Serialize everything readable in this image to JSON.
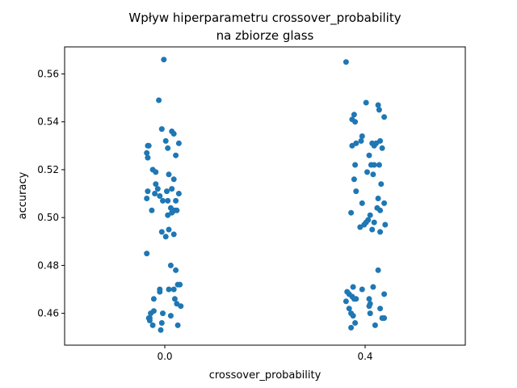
{
  "chart_data": {
    "type": "scatter",
    "title": "Wpływ hiperparametru crossover_probability\nna zbiorze glass",
    "title_lines": [
      "Wpływ hiperparametru crossover_probability",
      "na zbiorze glass"
    ],
    "xlabel": "crossover_probability",
    "ylabel": "accuracy",
    "categories": [
      "0.0",
      "0.4"
    ],
    "ylim": [
      0.4467,
      0.5713
    ],
    "yticks": [
      0.46,
      0.48,
      0.5,
      0.52,
      0.54,
      0.56
    ],
    "ytick_labels": [
      "0.46",
      "0.48",
      "0.50",
      "0.52",
      "0.54",
      "0.56"
    ],
    "color": "#1f77b4",
    "grid": false,
    "series": [
      {
        "category": "0.0",
        "points": [
          {
            "j": -0.02,
            "y": 0.566
          },
          {
            "j": -0.12,
            "y": 0.549
          },
          {
            "j": -0.06,
            "y": 0.537
          },
          {
            "j": 0.02,
            "y": 0.532
          },
          {
            "j": 0.14,
            "y": 0.536
          },
          {
            "j": 0.18,
            "y": 0.535
          },
          {
            "j": -0.32,
            "y": 0.53
          },
          {
            "j": -0.34,
            "y": 0.53
          },
          {
            "j": 0.06,
            "y": 0.529
          },
          {
            "j": 0.28,
            "y": 0.531
          },
          {
            "j": -0.36,
            "y": 0.527
          },
          {
            "j": -0.34,
            "y": 0.525
          },
          {
            "j": 0.22,
            "y": 0.526
          },
          {
            "j": -0.24,
            "y": 0.52
          },
          {
            "j": -0.18,
            "y": 0.519
          },
          {
            "j": 0.08,
            "y": 0.518
          },
          {
            "j": 0.18,
            "y": 0.516
          },
          {
            "j": -0.18,
            "y": 0.514
          },
          {
            "j": -0.14,
            "y": 0.512
          },
          {
            "j": -0.34,
            "y": 0.511
          },
          {
            "j": -0.2,
            "y": 0.51
          },
          {
            "j": 0.04,
            "y": 0.511
          },
          {
            "j": 0.14,
            "y": 0.512
          },
          {
            "j": 0.28,
            "y": 0.51
          },
          {
            "j": -0.36,
            "y": 0.508
          },
          {
            "j": -0.1,
            "y": 0.509
          },
          {
            "j": -0.04,
            "y": 0.507
          },
          {
            "j": 0.06,
            "y": 0.507
          },
          {
            "j": 0.22,
            "y": 0.507
          },
          {
            "j": 0.12,
            "y": 0.504
          },
          {
            "j": -0.26,
            "y": 0.503
          },
          {
            "j": 0.16,
            "y": 0.503
          },
          {
            "j": 0.14,
            "y": 0.502
          },
          {
            "j": 0.2,
            "y": 0.503
          },
          {
            "j": 0.24,
            "y": 0.503
          },
          {
            "j": 0.06,
            "y": 0.501
          },
          {
            "j": 0.08,
            "y": 0.495
          },
          {
            "j": -0.06,
            "y": 0.494
          },
          {
            "j": 0.02,
            "y": 0.492
          },
          {
            "j": 0.18,
            "y": 0.493
          },
          {
            "j": -0.36,
            "y": 0.485
          },
          {
            "j": 0.12,
            "y": 0.48
          },
          {
            "j": 0.22,
            "y": 0.478
          },
          {
            "j": 0.26,
            "y": 0.472
          },
          {
            "j": 0.3,
            "y": 0.472
          },
          {
            "j": -0.1,
            "y": 0.47
          },
          {
            "j": -0.1,
            "y": 0.469
          },
          {
            "j": 0.08,
            "y": 0.47
          },
          {
            "j": 0.18,
            "y": 0.47
          },
          {
            "j": 0.2,
            "y": 0.466
          },
          {
            "j": -0.22,
            "y": 0.466
          },
          {
            "j": 0.24,
            "y": 0.464
          },
          {
            "j": 0.32,
            "y": 0.463
          },
          {
            "j": -0.28,
            "y": 0.46
          },
          {
            "j": -0.22,
            "y": 0.461
          },
          {
            "j": -0.04,
            "y": 0.46
          },
          {
            "j": -0.32,
            "y": 0.458
          },
          {
            "j": -0.3,
            "y": 0.458
          },
          {
            "j": 0.12,
            "y": 0.459
          },
          {
            "j": -0.3,
            "y": 0.457
          },
          {
            "j": -0.24,
            "y": 0.455
          },
          {
            "j": -0.06,
            "y": 0.456
          },
          {
            "j": 0.26,
            "y": 0.455
          },
          {
            "j": -0.08,
            "y": 0.453
          }
        ]
      },
      {
        "category": "0.4",
        "points": [
          {
            "j": -0.38,
            "y": 0.565
          },
          {
            "j": 0.02,
            "y": 0.548
          },
          {
            "j": 0.26,
            "y": 0.547
          },
          {
            "j": 0.28,
            "y": 0.545
          },
          {
            "j": -0.22,
            "y": 0.543
          },
          {
            "j": 0.38,
            "y": 0.542
          },
          {
            "j": -0.26,
            "y": 0.541
          },
          {
            "j": -0.2,
            "y": 0.54
          },
          {
            "j": -0.06,
            "y": 0.534
          },
          {
            "j": -0.08,
            "y": 0.532
          },
          {
            "j": 0.14,
            "y": 0.531
          },
          {
            "j": 0.22,
            "y": 0.531
          },
          {
            "j": 0.3,
            "y": 0.532
          },
          {
            "j": -0.26,
            "y": 0.53
          },
          {
            "j": -0.18,
            "y": 0.531
          },
          {
            "j": 0.18,
            "y": 0.53
          },
          {
            "j": 0.34,
            "y": 0.529
          },
          {
            "j": 0.08,
            "y": 0.526
          },
          {
            "j": -0.2,
            "y": 0.522
          },
          {
            "j": 0.12,
            "y": 0.522
          },
          {
            "j": 0.18,
            "y": 0.522
          },
          {
            "j": 0.28,
            "y": 0.522
          },
          {
            "j": 0.04,
            "y": 0.519
          },
          {
            "j": 0.16,
            "y": 0.518
          },
          {
            "j": -0.22,
            "y": 0.516
          },
          {
            "j": 0.32,
            "y": 0.514
          },
          {
            "j": -0.18,
            "y": 0.511
          },
          {
            "j": 0.26,
            "y": 0.508
          },
          {
            "j": -0.06,
            "y": 0.506
          },
          {
            "j": 0.38,
            "y": 0.506
          },
          {
            "j": 0.24,
            "y": 0.504
          },
          {
            "j": 0.3,
            "y": 0.503
          },
          {
            "j": -0.28,
            "y": 0.502
          },
          {
            "j": 0.1,
            "y": 0.501
          },
          {
            "j": 0.06,
            "y": 0.499
          },
          {
            "j": 0.02,
            "y": 0.498
          },
          {
            "j": 0.18,
            "y": 0.498
          },
          {
            "j": -0.1,
            "y": 0.496
          },
          {
            "j": -0.02,
            "y": 0.497
          },
          {
            "j": 0.4,
            "y": 0.497
          },
          {
            "j": 0.14,
            "y": 0.495
          },
          {
            "j": 0.3,
            "y": 0.494
          },
          {
            "j": 0.26,
            "y": 0.478
          },
          {
            "j": -0.24,
            "y": 0.471
          },
          {
            "j": -0.06,
            "y": 0.47
          },
          {
            "j": 0.16,
            "y": 0.471
          },
          {
            "j": -0.36,
            "y": 0.469
          },
          {
            "j": -0.32,
            "y": 0.468
          },
          {
            "j": 0.38,
            "y": 0.468
          },
          {
            "j": -0.26,
            "y": 0.467
          },
          {
            "j": -0.18,
            "y": 0.466
          },
          {
            "j": -0.38,
            "y": 0.465
          },
          {
            "j": -0.22,
            "y": 0.466
          },
          {
            "j": 0.08,
            "y": 0.466
          },
          {
            "j": 0.1,
            "y": 0.464
          },
          {
            "j": 0.08,
            "y": 0.463
          },
          {
            "j": 0.3,
            "y": 0.462
          },
          {
            "j": -0.32,
            "y": 0.462
          },
          {
            "j": 0.1,
            "y": 0.46
          },
          {
            "j": -0.28,
            "y": 0.46
          },
          {
            "j": -0.24,
            "y": 0.459
          },
          {
            "j": 0.34,
            "y": 0.458
          },
          {
            "j": 0.38,
            "y": 0.458
          },
          {
            "j": -0.2,
            "y": 0.456
          },
          {
            "j": -0.28,
            "y": 0.454
          },
          {
            "j": 0.2,
            "y": 0.455
          }
        ]
      }
    ]
  }
}
